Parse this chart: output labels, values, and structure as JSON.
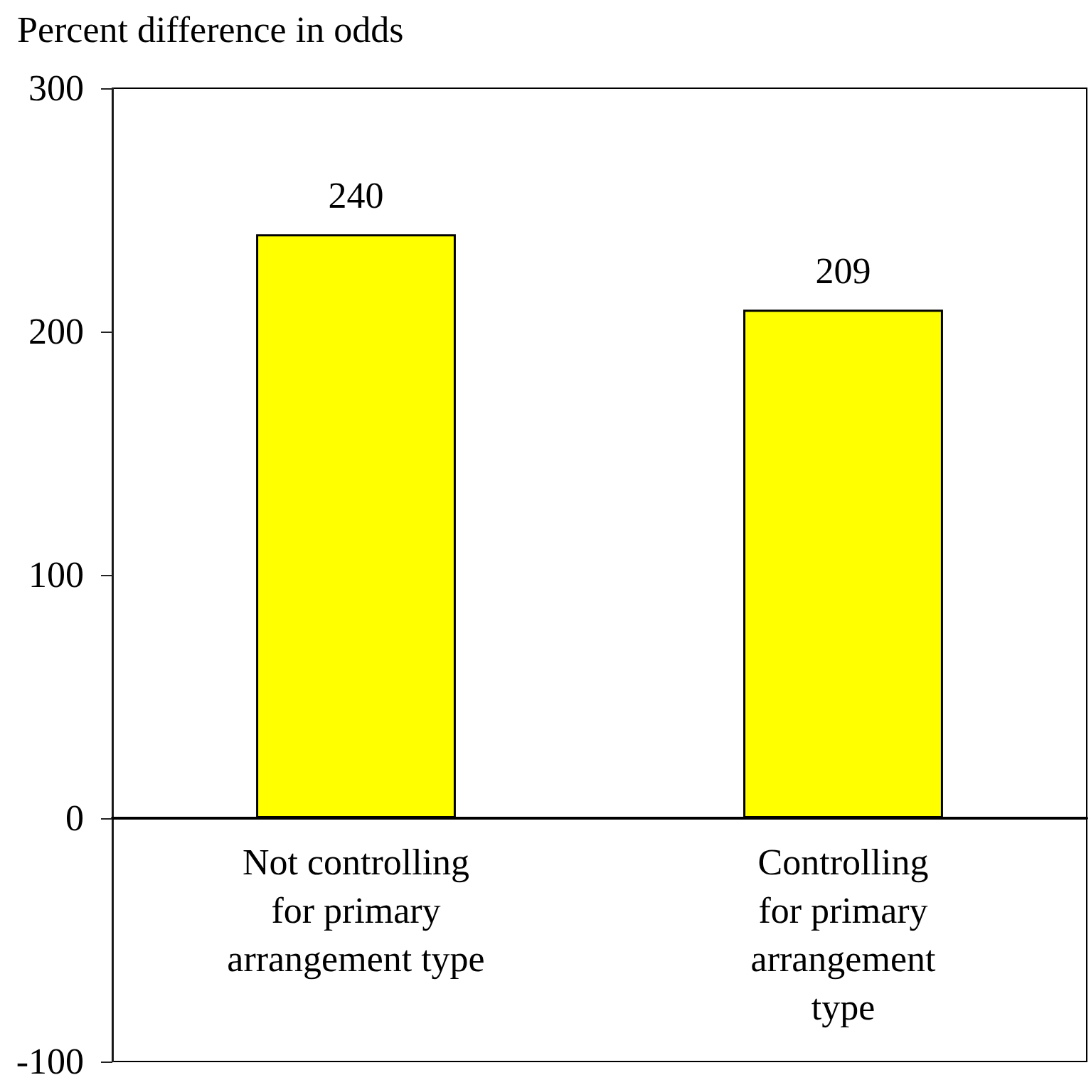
{
  "chart_data": {
    "type": "bar",
    "ylabel": "Percent difference in odds",
    "categories": [
      "Not controlling for primary arrangement type",
      "Controlling for primary arrangement type"
    ],
    "values": [
      240,
      209
    ],
    "color": "#ffff00",
    "ylim": [
      -100,
      300
    ],
    "yticks": [
      -100,
      0,
      100,
      200,
      300
    ],
    "data_labels": true
  }
}
